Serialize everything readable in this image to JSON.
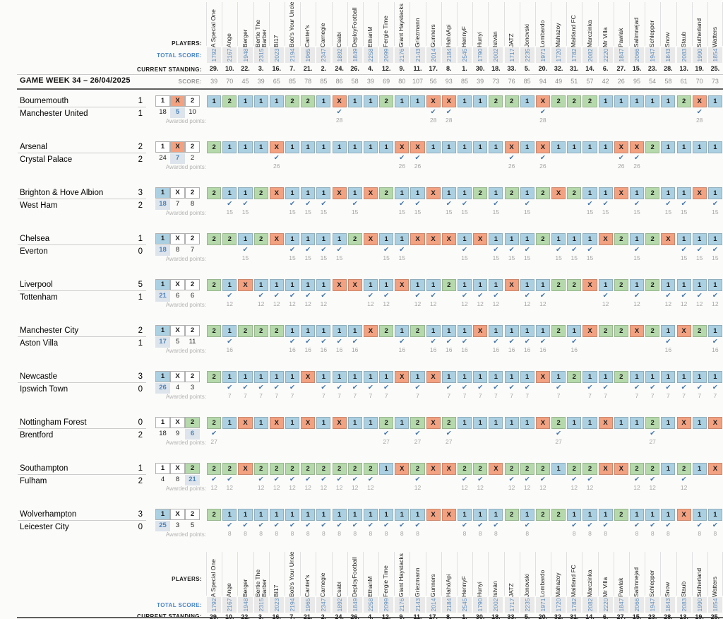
{
  "labels": {
    "players": "PLAYERS:",
    "total_score": "TOTAL SCORE:",
    "current_standing": "CURRENT STANDING:",
    "score": "SCORE:",
    "game_week": "GAME WEEK 34 – 26/04/2025",
    "awarded_points": "Awarded points:"
  },
  "options": [
    "1",
    "X",
    "2"
  ],
  "colors": {
    "home_win": "#abd0e2",
    "draw": "#f2a181",
    "away_win": "#b5d9ab",
    "accent_blue": "#4a86c8",
    "total_score_blue": "#5f8cba",
    "check_blue": "#3f72ad",
    "count_highlight_bg": "#dde4eb"
  },
  "players": [
    {
      "name": "A Special One",
      "total": "1792",
      "standing": "29.",
      "score": "39"
    },
    {
      "name": "Ange",
      "total": "2167",
      "standing": "10.",
      "score": "70"
    },
    {
      "name": "Berger",
      "total": "1948",
      "standing": "22.",
      "score": "45"
    },
    {
      "name": "Bertie The Barber",
      "total": "2315",
      "standing": "3.",
      "score": "39"
    },
    {
      "name": "BI17",
      "total": "2023",
      "standing": "16.",
      "score": "65"
    },
    {
      "name": "Bob's Your Uncle",
      "total": "2194",
      "standing": "7.",
      "score": "85"
    },
    {
      "name": "Canter's",
      "total": "1965",
      "standing": "21.",
      "score": "78"
    },
    {
      "name": "Carnegie",
      "total": "2347",
      "standing": "2.",
      "score": "85"
    },
    {
      "name": "Csabi",
      "total": "1892",
      "standing": "24.",
      "score": "86"
    },
    {
      "name": "DeployFootball",
      "total": "1849",
      "standing": "26.",
      "score": "58"
    },
    {
      "name": "EthanM",
      "total": "2258",
      "standing": "4.",
      "score": "39"
    },
    {
      "name": "Fergie Time",
      "total": "2099",
      "standing": "12.",
      "score": "69"
    },
    {
      "name": "Giant Haystacks",
      "total": "2176",
      "standing": "9.",
      "score": "80"
    },
    {
      "name": "Griezmann",
      "total": "2143",
      "standing": "11.",
      "score": "107"
    },
    {
      "name": "Gunners",
      "total": "2014",
      "standing": "17.",
      "score": "56"
    },
    {
      "name": "HahóApi",
      "total": "2184",
      "standing": "8.",
      "score": "93"
    },
    {
      "name": "HennyF",
      "total": "2545",
      "standing": "1.",
      "score": "85"
    },
    {
      "name": "Hunyi",
      "total": "1790",
      "standing": "30.",
      "score": "39"
    },
    {
      "name": "István",
      "total": "2002",
      "standing": "18.",
      "score": "73"
    },
    {
      "name": "JATZ",
      "total": "1717",
      "standing": "33.",
      "score": "76"
    },
    {
      "name": "Jonovski",
      "total": "2235",
      "standing": "5.",
      "score": "85"
    },
    {
      "name": "Lombardo",
      "total": "1971",
      "standing": "20.",
      "score": "94"
    },
    {
      "name": "Mahazoy",
      "total": "1720",
      "standing": "32.",
      "score": "49"
    },
    {
      "name": "Maitland FC",
      "total": "1782",
      "standing": "31.",
      "score": "51"
    },
    {
      "name": "Marczinka",
      "total": "2082",
      "standing": "14.",
      "score": "57"
    },
    {
      "name": "Mr Villa",
      "total": "2220",
      "standing": "6.",
      "score": "42"
    },
    {
      "name": "Pawlak",
      "total": "1847",
      "standing": "27.",
      "score": "26"
    },
    {
      "name": "Salimnejad",
      "total": "2066",
      "standing": "15.",
      "score": "95"
    },
    {
      "name": "Schlepper",
      "total": "1947",
      "standing": "23.",
      "score": "54"
    },
    {
      "name": "Snow",
      "total": "1843",
      "standing": "28.",
      "score": "58"
    },
    {
      "name": "Staub",
      "total": "2083",
      "standing": "13.",
      "score": "61"
    },
    {
      "name": "Sutherland",
      "total": "1990",
      "standing": "19.",
      "score": "70"
    },
    {
      "name": "Watters",
      "total": "1854",
      "standing": "25.",
      "score": "73"
    }
  ],
  "matches": [
    {
      "home": "Bournemouth",
      "home_score": "1",
      "away": "Manchester United",
      "away_score": "1",
      "result": "X",
      "counts": {
        "1": "18",
        "X": "5",
        "2": "10"
      },
      "points": "28",
      "predictions": "12111221X11211XX11221X222111112X1"
    },
    {
      "home": "Arsenal",
      "home_score": "2",
      "away": "Crystal Palace",
      "away_score": "2",
      "result": "X",
      "counts": {
        "1": "24",
        "X": "7",
        "2": "2"
      },
      "points": "26",
      "predictions": "2111X1111111XX11111X1X1111XX21111"
    },
    {
      "home": "Brighton & Hove Albion",
      "home_score": "3",
      "away": "West Ham",
      "away_score": "2",
      "result": "1",
      "counts": {
        "1": "18",
        "X": "7",
        "2": "8"
      },
      "points": "15",
      "predictions": "2112X111X1X211X1121212X211X1211X1"
    },
    {
      "home": "Chelsea",
      "home_score": "1",
      "away": "Everton",
      "away_score": "0",
      "result": "1",
      "counts": {
        "1": "18",
        "X": "8",
        "2": "7"
      },
      "points": "15",
      "predictions": "2212X11112X11XXX1X1112111X212X111"
    },
    {
      "home": "Liverpool",
      "home_score": "5",
      "away": "Tottenham",
      "away_score": "1",
      "result": "1",
      "counts": {
        "1": "21",
        "X": "6",
        "2": "6"
      },
      "points": "12",
      "predictions": "21X11111XX11X112111X1122X12121111"
    },
    {
      "home": "Manchester City",
      "home_score": "2",
      "away": "Aston Villa",
      "away_score": "1",
      "result": "1",
      "counts": {
        "1": "17",
        "X": "5",
        "2": "11"
      },
      "points": "16",
      "predictions": "2122211111X212111X111121X22X21X21"
    },
    {
      "home": "Newcastle",
      "home_score": "3",
      "away": "Ipswich Town",
      "away_score": "0",
      "result": "1",
      "counts": {
        "1": "26",
        "X": "4",
        "2": "3"
      },
      "points": "7",
      "predictions": "211111X11111X1X111111X12112111111"
    },
    {
      "home": "Nottingham Forest",
      "home_score": "0",
      "away": "Brentford",
      "away_score": "2",
      "result": "2",
      "counts": {
        "1": "18",
        "X": "9",
        "2": "6"
      },
      "points": "27",
      "predictions": "21X1X1X1X11212X211111X211X1121X1X"
    },
    {
      "home": "Southampton",
      "home_score": "1",
      "away": "Fulham",
      "away_score": "2",
      "result": "2",
      "counts": {
        "1": "4",
        "X": "8",
        "2": "21"
      },
      "points": "12",
      "predictions": "22X222222221X2XX22X222122XX22121X"
    },
    {
      "home": "Wolverhampton",
      "home_score": "3",
      "away": "Leicester City",
      "away_score": "0",
      "result": "1",
      "counts": {
        "1": "25",
        "X": "3",
        "2": "5"
      },
      "points": "8",
      "predictions": "21111111111111XX11121221112111X11"
    }
  ]
}
